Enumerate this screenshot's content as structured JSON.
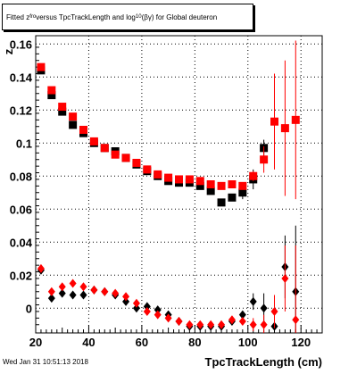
{
  "title": {
    "part1": "Fitted z",
    "sub1": "fro",
    "part2": " versus TpcTrackLength and log",
    "sub2": "10",
    "part3": "(βγ) for Global deuteron"
  },
  "footer_text": "Wed Jan 31 10:51:13 2018",
  "chart_data": {
    "type": "scatter",
    "title": "Fitted z_fro versus TpcTrackLength and log10(βγ) for Global deuteron",
    "xlabel": "TpcTrackLength (cm)",
    "ylabel": "z",
    "xlim": [
      20,
      128
    ],
    "ylim": [
      -0.015,
      0.165
    ],
    "xticks": [
      20,
      40,
      60,
      80,
      100,
      120
    ],
    "yticks": [
      0,
      0.02,
      0.04,
      0.06,
      0.08,
      0.1,
      0.12,
      0.14,
      0.16
    ],
    "ytick_labels": [
      "0",
      "0.02",
      "0.04",
      "0.06",
      "0.08",
      "0.1",
      "0.12",
      "0.14",
      "0.16"
    ],
    "grid": true,
    "series": [
      {
        "marker": "square",
        "color": "#000000",
        "x": [
          22,
          26,
          30,
          34,
          38,
          42,
          46,
          50,
          54,
          58,
          62,
          66,
          70,
          74,
          78,
          82,
          86,
          90,
          94,
          98,
          102,
          106
        ],
        "y": [
          0.144,
          0.129,
          0.119,
          0.111,
          0.106,
          0.1,
          0.097,
          0.095,
          0.091,
          0.087,
          0.083,
          0.08,
          0.077,
          0.076,
          0.076,
          0.074,
          0.071,
          0.064,
          0.067,
          0.07,
          0.078,
          0.097
        ],
        "err": [
          0,
          0,
          0,
          0,
          0,
          0,
          0,
          0,
          0,
          0,
          0,
          0,
          0,
          0,
          0,
          0,
          0,
          0,
          0,
          0.004,
          0.006,
          0.005
        ]
      },
      {
        "marker": "square",
        "color": "#ff0000",
        "x": [
          22,
          26,
          30,
          34,
          38,
          42,
          46,
          50,
          54,
          58,
          62,
          66,
          70,
          74,
          78,
          82,
          86,
          90,
          94,
          98,
          102,
          106,
          110,
          114,
          118
        ],
        "y": [
          0.146,
          0.132,
          0.122,
          0.116,
          0.108,
          0.101,
          0.097,
          0.093,
          0.091,
          0.088,
          0.084,
          0.081,
          0.079,
          0.078,
          0.078,
          0.077,
          0.075,
          0.074,
          0.075,
          0.074,
          0.08,
          0.09,
          0.113,
          0.109,
          0.114
        ],
        "err": [
          0,
          0,
          0,
          0,
          0,
          0,
          0,
          0,
          0,
          0,
          0,
          0,
          0,
          0,
          0,
          0,
          0,
          0,
          0,
          0,
          0.003,
          0.008,
          0.029,
          0.041,
          0.048
        ]
      },
      {
        "marker": "diamond",
        "color": "#000000",
        "x": [
          22,
          26,
          30,
          34,
          38,
          42,
          46,
          50,
          54,
          58,
          62,
          66,
          70,
          74,
          78,
          82,
          86,
          90,
          94,
          98,
          102,
          106,
          110,
          114,
          118
        ],
        "y": [
          0.023,
          0.006,
          0.009,
          0.008,
          0.008,
          0.011,
          0.01,
          0.008,
          0.004,
          0.0,
          0.001,
          -0.001,
          -0.004,
          -0.008,
          -0.011,
          -0.011,
          -0.011,
          -0.011,
          -0.008,
          -0.004,
          0.004,
          0.0,
          -0.011,
          0.025,
          0.01
        ],
        "err": [
          0,
          0,
          0,
          0,
          0,
          0,
          0,
          0,
          0,
          0,
          0,
          0,
          0,
          0,
          0,
          0,
          0,
          0,
          0,
          0,
          0.005,
          0.009,
          0.013,
          0.019,
          0.04
        ]
      },
      {
        "marker": "diamond",
        "color": "#ff0000",
        "x": [
          22,
          26,
          30,
          34,
          38,
          42,
          46,
          50,
          54,
          58,
          62,
          66,
          70,
          74,
          78,
          82,
          86,
          90,
          94,
          98,
          102,
          106,
          110,
          114,
          118
        ],
        "y": [
          0.024,
          0.01,
          0.013,
          0.015,
          0.013,
          0.011,
          0.01,
          0.009,
          0.007,
          0.003,
          -0.002,
          -0.004,
          -0.006,
          -0.008,
          -0.01,
          -0.01,
          -0.01,
          -0.01,
          -0.007,
          -0.008,
          -0.01,
          -0.01,
          -0.002,
          0.018,
          -0.007
        ],
        "err": [
          0,
          0,
          0,
          0,
          0,
          0,
          0,
          0,
          0,
          0,
          0,
          0,
          0,
          0,
          0,
          0,
          0,
          0,
          0,
          0,
          0.004,
          0.006,
          0.01,
          0.02,
          0.045
        ]
      }
    ]
  }
}
